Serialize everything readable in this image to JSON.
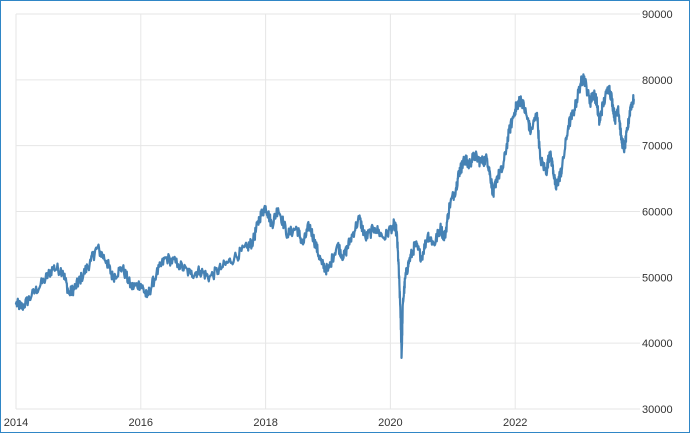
{
  "chart_data": {
    "type": "line",
    "title": "",
    "xlabel": "",
    "ylabel": "",
    "xlim": [
      2014.0,
      2024.0
    ],
    "ylim": [
      30000,
      90000
    ],
    "grid": true,
    "y_axis_side": "right",
    "x_ticks": [
      2014,
      2016,
      2018,
      2020,
      2022
    ],
    "x_tick_labels": [
      "2014",
      "2016",
      "2018",
      "2020",
      "2022"
    ],
    "y_ticks": [
      30000,
      40000,
      50000,
      60000,
      70000,
      80000,
      90000
    ],
    "y_tick_labels": [
      "30000",
      "40000",
      "50000",
      "60000",
      "70000",
      "80000",
      "90000"
    ],
    "colors": {
      "line": "#4682b4",
      "grid": "#e6e6e6",
      "frame": "#2f86c6",
      "text": "#333333"
    },
    "series": [
      {
        "x": [
          2014.0,
          2014.1,
          2014.25,
          2014.45,
          2014.6,
          2014.75,
          2014.85,
          2014.95,
          2015.05,
          2015.2,
          2015.3,
          2015.45,
          2015.55,
          2015.7,
          2015.85,
          2016.0,
          2016.1,
          2016.25,
          2016.4,
          2016.6,
          2016.8,
          2016.95,
          2017.1,
          2017.3,
          2017.5,
          2017.7,
          2017.8,
          2017.9,
          2018.0,
          2018.1,
          2018.2,
          2018.35,
          2018.5,
          2018.6,
          2018.7,
          2018.8,
          2018.9,
          2019.0,
          2019.15,
          2019.25,
          2019.35,
          2019.5,
          2019.6,
          2019.75,
          2019.9,
          2020.05,
          2020.1,
          2020.13,
          2020.16,
          2020.18,
          2020.2,
          2020.24,
          2020.3,
          2020.4,
          2020.5,
          2020.6,
          2020.7,
          2020.8,
          2020.87,
          2020.95,
          2021.05,
          2021.1,
          2021.15,
          2021.2,
          2021.25,
          2021.35,
          2021.45,
          2021.55,
          2021.6,
          2021.65,
          2021.7,
          2021.8,
          2021.9,
          2022.0,
          2022.05,
          2022.1,
          2022.2,
          2022.25,
          2022.35,
          2022.4,
          2022.5,
          2022.55,
          2022.6,
          2022.65,
          2022.7,
          2022.75,
          2022.85,
          2022.95,
          2023.05,
          2023.1,
          2023.2,
          2023.25,
          2023.3,
          2023.35,
          2023.4,
          2023.5,
          2023.55,
          2023.6,
          2023.65,
          2023.7,
          2023.75,
          2023.8,
          2023.85,
          2023.9
        ],
        "y": [
          46000,
          45500,
          47200,
          49500,
          51500,
          51000,
          47500,
          48500,
          50000,
          52500,
          54500,
          52500,
          50000,
          51500,
          48500,
          49000,
          47000,
          50500,
          53000,
          52000,
          50500,
          51000,
          50000,
          51500,
          53000,
          54500,
          55500,
          59000,
          60800,
          58000,
          60500,
          56500,
          57500,
          55000,
          58000,
          55000,
          52000,
          51000,
          55000,
          53000,
          55500,
          59000,
          56000,
          57500,
          56000,
          58000,
          57000,
          52000,
          45000,
          38000,
          46000,
          50000,
          52500,
          55000,
          53000,
          56500,
          55000,
          57500,
          56000,
          61000,
          63500,
          66000,
          67000,
          68000,
          67000,
          68500,
          67500,
          68000,
          65500,
          62500,
          65000,
          66500,
          72000,
          75500,
          76500,
          77000,
          74000,
          72000,
          75000,
          68000,
          66000,
          69000,
          67000,
          63500,
          65000,
          66500,
          73000,
          75500,
          79500,
          80500,
          76500,
          78000,
          77000,
          73500,
          76000,
          79000,
          77000,
          74000,
          76000,
          71000,
          69500,
          72500,
          76000,
          77000
        ]
      }
    ]
  }
}
